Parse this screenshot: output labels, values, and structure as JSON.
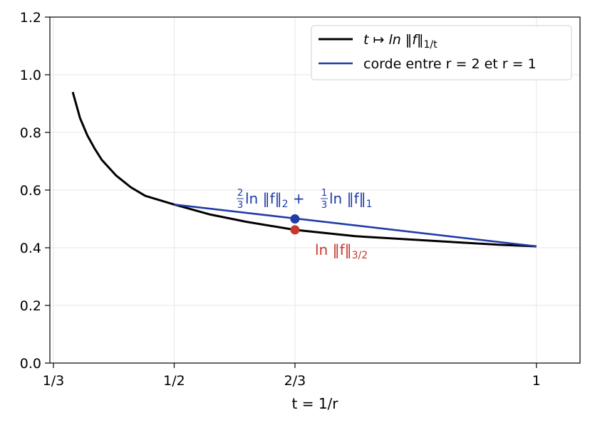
{
  "chart_data": {
    "type": "line",
    "xlabel": "t = 1/r",
    "ylim": [
      0,
      1.2
    ],
    "xlim": [
      0.3284,
      1.0602
    ],
    "grid": true,
    "legend_placement": "top-right",
    "xticks": [
      {
        "value": 0.3333,
        "label": "1/3"
      },
      {
        "value": 0.5,
        "label": "1/2"
      },
      {
        "value": 0.6667,
        "label": "2/3"
      },
      {
        "value": 1.0,
        "label": "1"
      }
    ],
    "yticks": [
      {
        "value": 0.0,
        "label": "0.0"
      },
      {
        "value": 0.2,
        "label": "0.2"
      },
      {
        "value": 0.4,
        "label": "0.4"
      },
      {
        "value": 0.6,
        "label": "0.6"
      },
      {
        "value": 0.8,
        "label": "0.8"
      },
      {
        "value": 1.0,
        "label": "1.0"
      },
      {
        "value": 1.2,
        "label": "1.2"
      }
    ],
    "series": [
      {
        "name": "t ↦ ln ‖f‖_{1/t}",
        "color": "#000000",
        "x": [
          0.36,
          0.37,
          0.38,
          0.39,
          0.4,
          0.42,
          0.44,
          0.46,
          0.48,
          0.5,
          0.55,
          0.6,
          0.6667,
          0.75,
          0.85,
          0.95,
          1.0
        ],
        "y": [
          0.94,
          0.85,
          0.79,
          0.745,
          0.705,
          0.65,
          0.61,
          0.58,
          0.565,
          0.55,
          0.515,
          0.49,
          0.462,
          0.44,
          0.425,
          0.41,
          0.405
        ]
      },
      {
        "name": "corde entre r = 2 et r = 1",
        "color": "#1f3ca8",
        "x": [
          0.5,
          1.0
        ],
        "y": [
          0.55,
          0.405
        ]
      }
    ],
    "points": [
      {
        "x": 0.6667,
        "y": 0.5,
        "color": "#1f3ca8",
        "label": "2/3 ln ‖f‖₂ + 1/3 ln ‖f‖₁"
      },
      {
        "x": 0.6667,
        "y": 0.462,
        "color": "#c8372d",
        "label": "ln ‖f‖_{3/2}"
      }
    ]
  },
  "legend": {
    "item1_main": "t ↦ ln ‖f‖",
    "item1_sub": "1/t",
    "item2_label": "corde entre r = 2 et r = 1"
  },
  "annotations": {
    "blue_frac1_num": "2",
    "blue_frac1_den": "3",
    "blue_part1": "ln ‖f‖",
    "blue_sub1": "2",
    "blue_plus": " + ",
    "blue_frac2_num": "1",
    "blue_frac2_den": "3",
    "blue_part2": "ln ‖f‖",
    "blue_sub2": "1",
    "red_main": "ln ‖f‖",
    "red_sub": "3/2"
  }
}
